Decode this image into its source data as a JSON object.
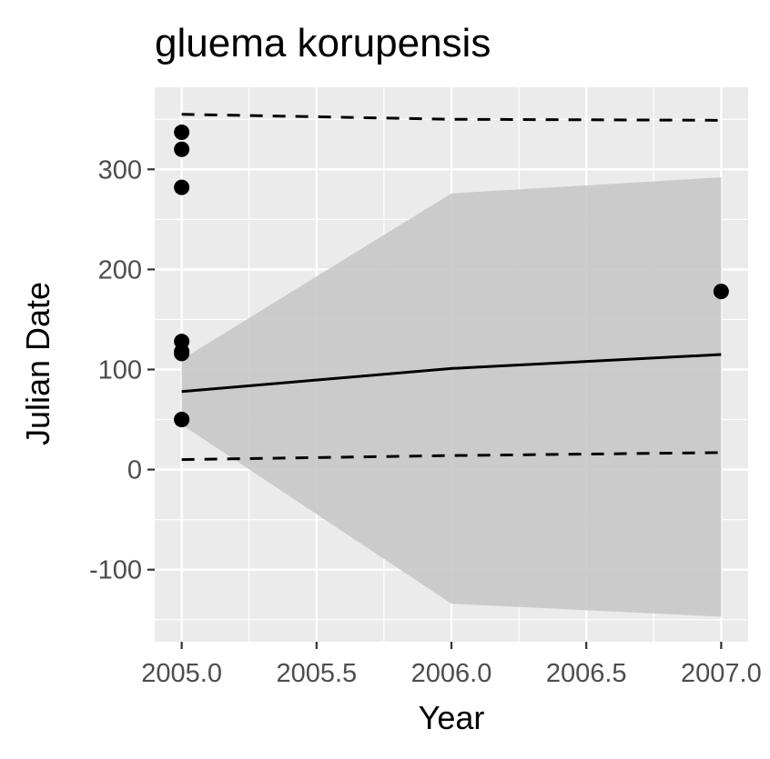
{
  "chart_data": {
    "type": "line",
    "title": "gluema korupensis",
    "xlabel": "Year",
    "ylabel": "Julian Date",
    "xlim": [
      2004.9,
      2007.1
    ],
    "ylim": [
      -172,
      382
    ],
    "x_ticks": [
      2005.0,
      2005.5,
      2006.0,
      2006.5,
      2007.0
    ],
    "x_tick_labels": [
      "2005.0",
      "2005.5",
      "2006.0",
      "2006.5",
      "2007.0"
    ],
    "y_ticks": [
      -100,
      0,
      100,
      200,
      300
    ],
    "y_tick_labels": [
      "-100",
      "0",
      "100",
      "200",
      "300"
    ],
    "grid": true,
    "legend": "none",
    "points": [
      {
        "x": 2005.0,
        "y": 337
      },
      {
        "x": 2005.0,
        "y": 320
      },
      {
        "x": 2005.0,
        "y": 282
      },
      {
        "x": 2005.0,
        "y": 128
      },
      {
        "x": 2005.0,
        "y": 118
      },
      {
        "x": 2005.0,
        "y": 116
      },
      {
        "x": 2005.0,
        "y": 50
      },
      {
        "x": 2005.0,
        "y": 50
      },
      {
        "x": 2007.0,
        "y": 178
      }
    ],
    "fit_line": {
      "x": [
        2005.0,
        2006.0,
        2007.0
      ],
      "y": [
        78,
        101,
        115
      ]
    },
    "confidence_band": {
      "x": [
        2005.0,
        2006.0,
        2007.0
      ],
      "lower": [
        45,
        -134,
        -147
      ],
      "upper": [
        110,
        276,
        292
      ]
    },
    "upper_dashed": {
      "x": [
        2005.0,
        2006.0,
        2007.0
      ],
      "y": [
        355,
        350,
        349
      ]
    },
    "lower_dashed": {
      "x": [
        2005.0,
        2006.0,
        2007.0
      ],
      "y": [
        10,
        14,
        17
      ]
    },
    "colors": {
      "panel_background": "#ebebeb",
      "grid": "#ffffff",
      "points": "#000000",
      "fit_line": "#000000",
      "band": "#c8c8c8",
      "tick_text": "#4d4d4d"
    }
  }
}
